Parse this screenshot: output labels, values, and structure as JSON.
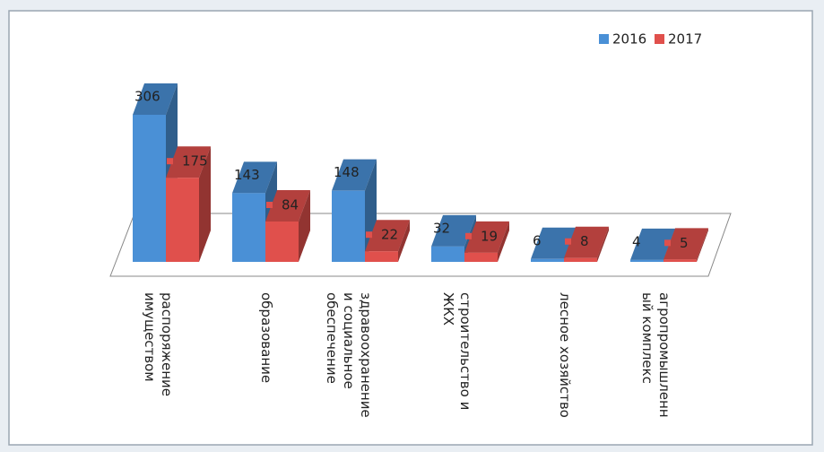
{
  "chart_data": {
    "type": "bar3d",
    "categories": [
      "распоряжение имуществом",
      "образование",
      "здравоохранение и социальное обеспечение",
      "строительство и ЖКХ",
      "лесное хозяйство",
      "агропромышленный комплекс"
    ],
    "series": [
      {
        "name": "2016",
        "color": "#4a90d6",
        "values": [
          306,
          143,
          148,
          32,
          6,
          4
        ]
      },
      {
        "name": "2017",
        "color": "#e0504c",
        "values": [
          175,
          84,
          22,
          19,
          8,
          5
        ]
      }
    ],
    "legend": "top-right"
  }
}
